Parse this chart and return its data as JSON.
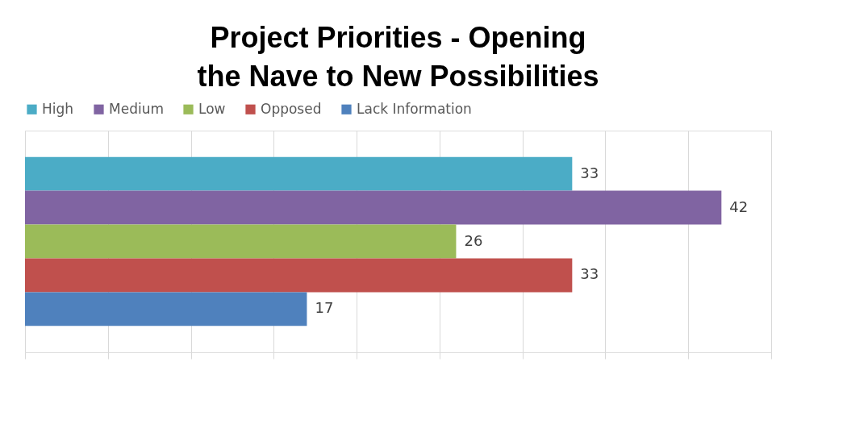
{
  "chart_data": {
    "type": "bar",
    "title": "Project Priorities - Opening the Nave to New Possibilities",
    "orientation": "horizontal",
    "categories": [
      null
    ],
    "series": [
      {
        "name": "High",
        "color": "#4bacc6",
        "values": [
          33
        ]
      },
      {
        "name": "Medium",
        "color": "#8064a2",
        "values": [
          42
        ]
      },
      {
        "name": "Low",
        "color": "#9bbb59",
        "values": [
          26
        ]
      },
      {
        "name": "Opposed",
        "color": "#c0504d",
        "values": [
          33
        ]
      },
      {
        "name": "Lack Information",
        "color": "#4f81bd",
        "values": [
          17
        ]
      }
    ],
    "xlim": [
      0,
      45
    ],
    "xticks": [
      {
        "value": 0,
        "label": null
      },
      {
        "value": 5,
        "label": null
      },
      {
        "value": 10,
        "label": null
      },
      {
        "value": 15,
        "label": null
      },
      {
        "value": 20,
        "label": null
      },
      {
        "value": 25,
        "label": null
      },
      {
        "value": 30,
        "label": null
      },
      {
        "value": 35,
        "label": null
      },
      {
        "value": 40,
        "label": null
      },
      {
        "value": 45,
        "label": null
      }
    ],
    "tick_labels": false,
    "grid": "x",
    "legend": "top",
    "data_labels": true
  }
}
